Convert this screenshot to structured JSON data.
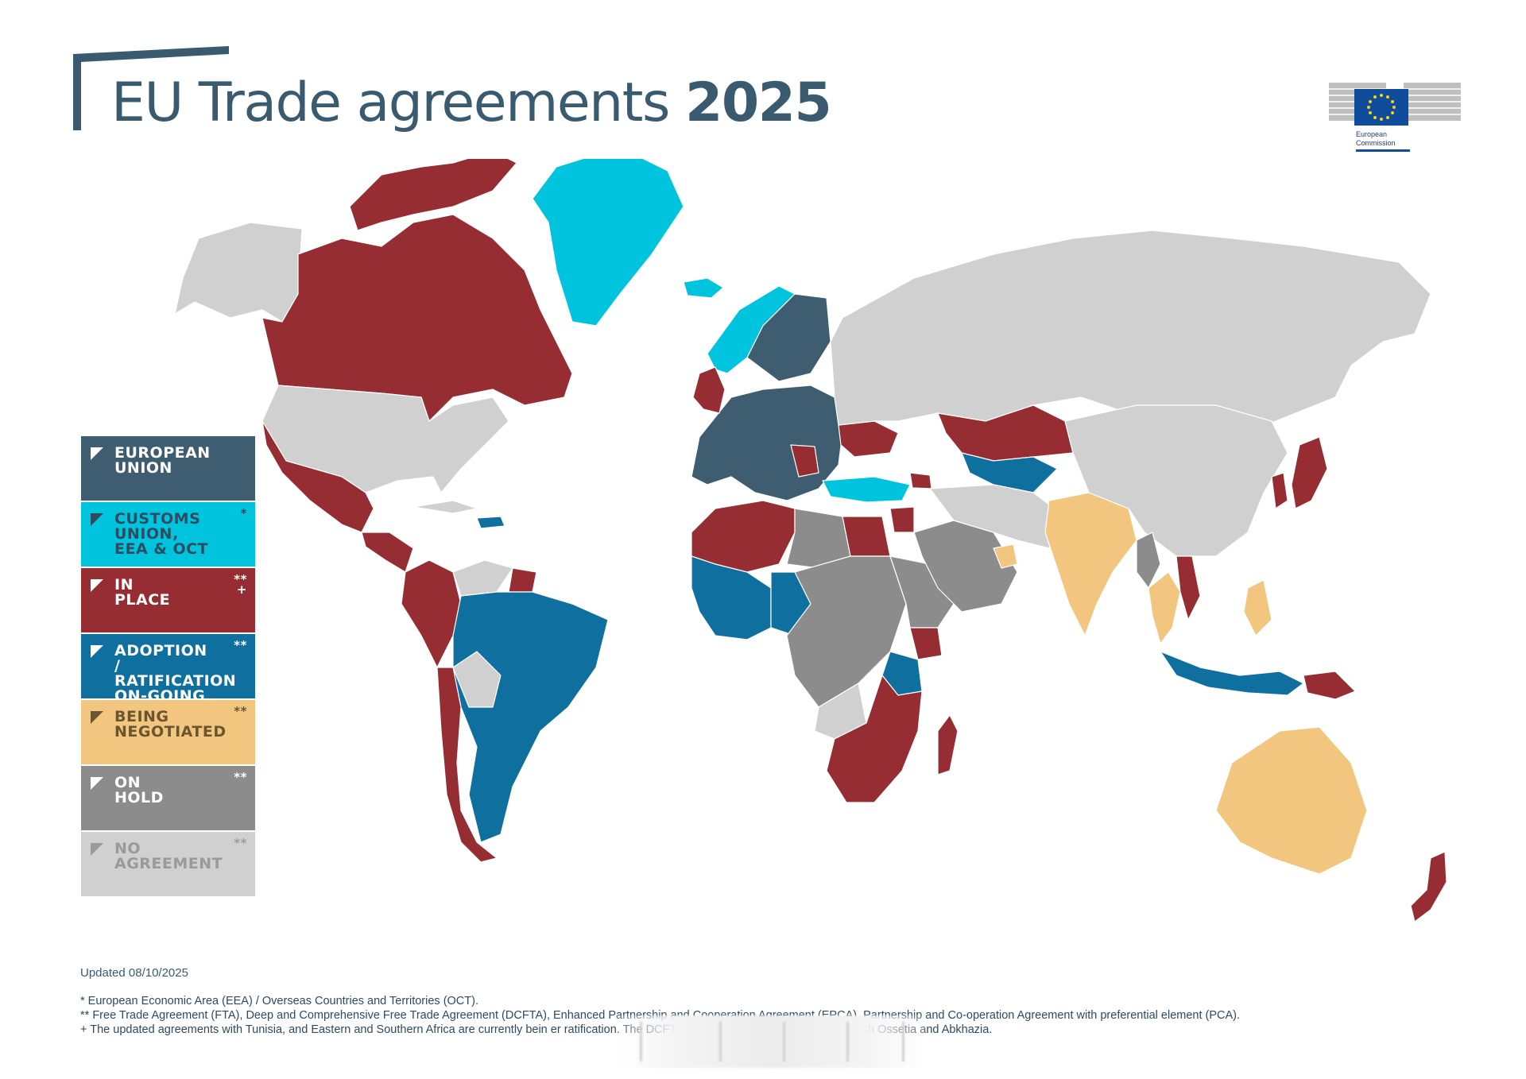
{
  "header": {
    "title_main": "EU Trade agreements",
    "title_year": "2025",
    "logo_text": "European Commission"
  },
  "colors": {
    "eu": "#3f5d71",
    "customs_union": "#00c3de",
    "in_place": "#952d33",
    "adoption": "#0f6f9f",
    "negotiated": "#f2c67e",
    "on_hold": "#8c8c8c",
    "no_agreement": "#d0d0d0"
  },
  "legend": [
    {
      "label": "EUROPEAN\nUNION",
      "marks": "",
      "bg": "#3f5d71",
      "fg": "#ffffff"
    },
    {
      "label": "CUSTOMS\nUNION,\nEEA & OCT",
      "marks": "*",
      "bg": "#00c3de",
      "fg": "#2f4c5f"
    },
    {
      "label": "IN\nPLACE",
      "marks": "**\n+",
      "bg": "#952d33",
      "fg": "#ffffff"
    },
    {
      "label": "ADOPTION\n/ RATIFICATION\nON-GOING",
      "marks": "**",
      "bg": "#0f6f9f",
      "fg": "#ffffff"
    },
    {
      "label": "BEING\nNEGOTIATED",
      "marks": "**",
      "bg": "#f2c67e",
      "fg": "#6b5530"
    },
    {
      "label": "ON\nHOLD",
      "marks": "**",
      "bg": "#8c8c8c",
      "fg": "#ffffff"
    },
    {
      "label": "NO\nAGREEMENT",
      "marks": "**",
      "bg": "#d0d0d0",
      "fg": "#9a9a9a"
    }
  ],
  "updated": "Updated 08/10/2025",
  "footnotes": [
    "* European Economic Area (EEA) / Overseas Countries and Territories (OCT).",
    "** Free Trade Agreement (FTA), Deep and Comprehensive Free Trade Agreement (DCFTA), Enhanced Partnership and Cooperation Agreement (EPCA), Partnership and Co-operation Agreement with preferential element (PCA).",
    "+ The updated agreements with Tunisia, and Eastern and Southern Africa are currently bein                                                                    er ratification. The DCFTA with Georgia does not apply in South Ossetia and Abkhazia."
  ],
  "regions": [
    {
      "name": "alaska",
      "status": "no_agreement"
    },
    {
      "name": "canada",
      "status": "in_place"
    },
    {
      "name": "canadian-arctic",
      "status": "in_place"
    },
    {
      "name": "greenland",
      "status": "customs_union"
    },
    {
      "name": "iceland",
      "status": "customs_union"
    },
    {
      "name": "usa",
      "status": "no_agreement"
    },
    {
      "name": "mexico",
      "status": "in_place"
    },
    {
      "name": "central-america",
      "status": "in_place"
    },
    {
      "name": "cuba",
      "status": "no_agreement"
    },
    {
      "name": "hispaniola",
      "status": "adoption"
    },
    {
      "name": "colombia-peru-ecuador",
      "status": "in_place"
    },
    {
      "name": "venezuela",
      "status": "no_agreement"
    },
    {
      "name": "guianas",
      "status": "in_place"
    },
    {
      "name": "mercosur",
      "status": "adoption"
    },
    {
      "name": "bolivia",
      "status": "no_agreement"
    },
    {
      "name": "chile",
      "status": "in_place"
    },
    {
      "name": "norway",
      "status": "customs_union"
    },
    {
      "name": "eu-mainland",
      "status": "eu"
    },
    {
      "name": "scandinavia-eu",
      "status": "eu"
    },
    {
      "name": "uk-ireland",
      "status": "in_place"
    },
    {
      "name": "ukraine-moldova",
      "status": "in_place"
    },
    {
      "name": "western-balkans",
      "status": "in_place"
    },
    {
      "name": "turkey",
      "status": "customs_union"
    },
    {
      "name": "caucasus",
      "status": "in_place"
    },
    {
      "name": "russia",
      "status": "no_agreement"
    },
    {
      "name": "kazakhstan",
      "status": "in_place"
    },
    {
      "name": "central-asia",
      "status": "adoption"
    },
    {
      "name": "maghreb",
      "status": "in_place"
    },
    {
      "name": "libya",
      "status": "on_hold"
    },
    {
      "name": "egypt",
      "status": "in_place"
    },
    {
      "name": "levant",
      "status": "in_place"
    },
    {
      "name": "west-africa",
      "status": "adoption"
    },
    {
      "name": "sahel",
      "status": "adoption"
    },
    {
      "name": "central-africa",
      "status": "on_hold"
    },
    {
      "name": "east-africa",
      "status": "on_hold"
    },
    {
      "name": "kenya",
      "status": "in_place"
    },
    {
      "name": "tanzania",
      "status": "adoption"
    },
    {
      "name": "angola",
      "status": "no_agreement"
    },
    {
      "name": "southern-africa",
      "status": "in_place"
    },
    {
      "name": "madagascar",
      "status": "in_place"
    },
    {
      "name": "arabia",
      "status": "on_hold"
    },
    {
      "name": "uae",
      "status": "negotiated"
    },
    {
      "name": "iran-afghanistan",
      "status": "no_agreement"
    },
    {
      "name": "india",
      "status": "negotiated"
    },
    {
      "name": "china-mongolia",
      "status": "no_agreement"
    },
    {
      "name": "myanmar",
      "status": "on_hold"
    },
    {
      "name": "thailand-malaysia",
      "status": "negotiated"
    },
    {
      "name": "vietnam",
      "status": "in_place"
    },
    {
      "name": "philippines",
      "status": "negotiated"
    },
    {
      "name": "indonesia",
      "status": "adoption"
    },
    {
      "name": "papua",
      "status": "in_place"
    },
    {
      "name": "korea",
      "status": "in_place"
    },
    {
      "name": "japan",
      "status": "in_place"
    },
    {
      "name": "australia",
      "status": "negotiated"
    },
    {
      "name": "new-zealand",
      "status": "in_place"
    }
  ]
}
